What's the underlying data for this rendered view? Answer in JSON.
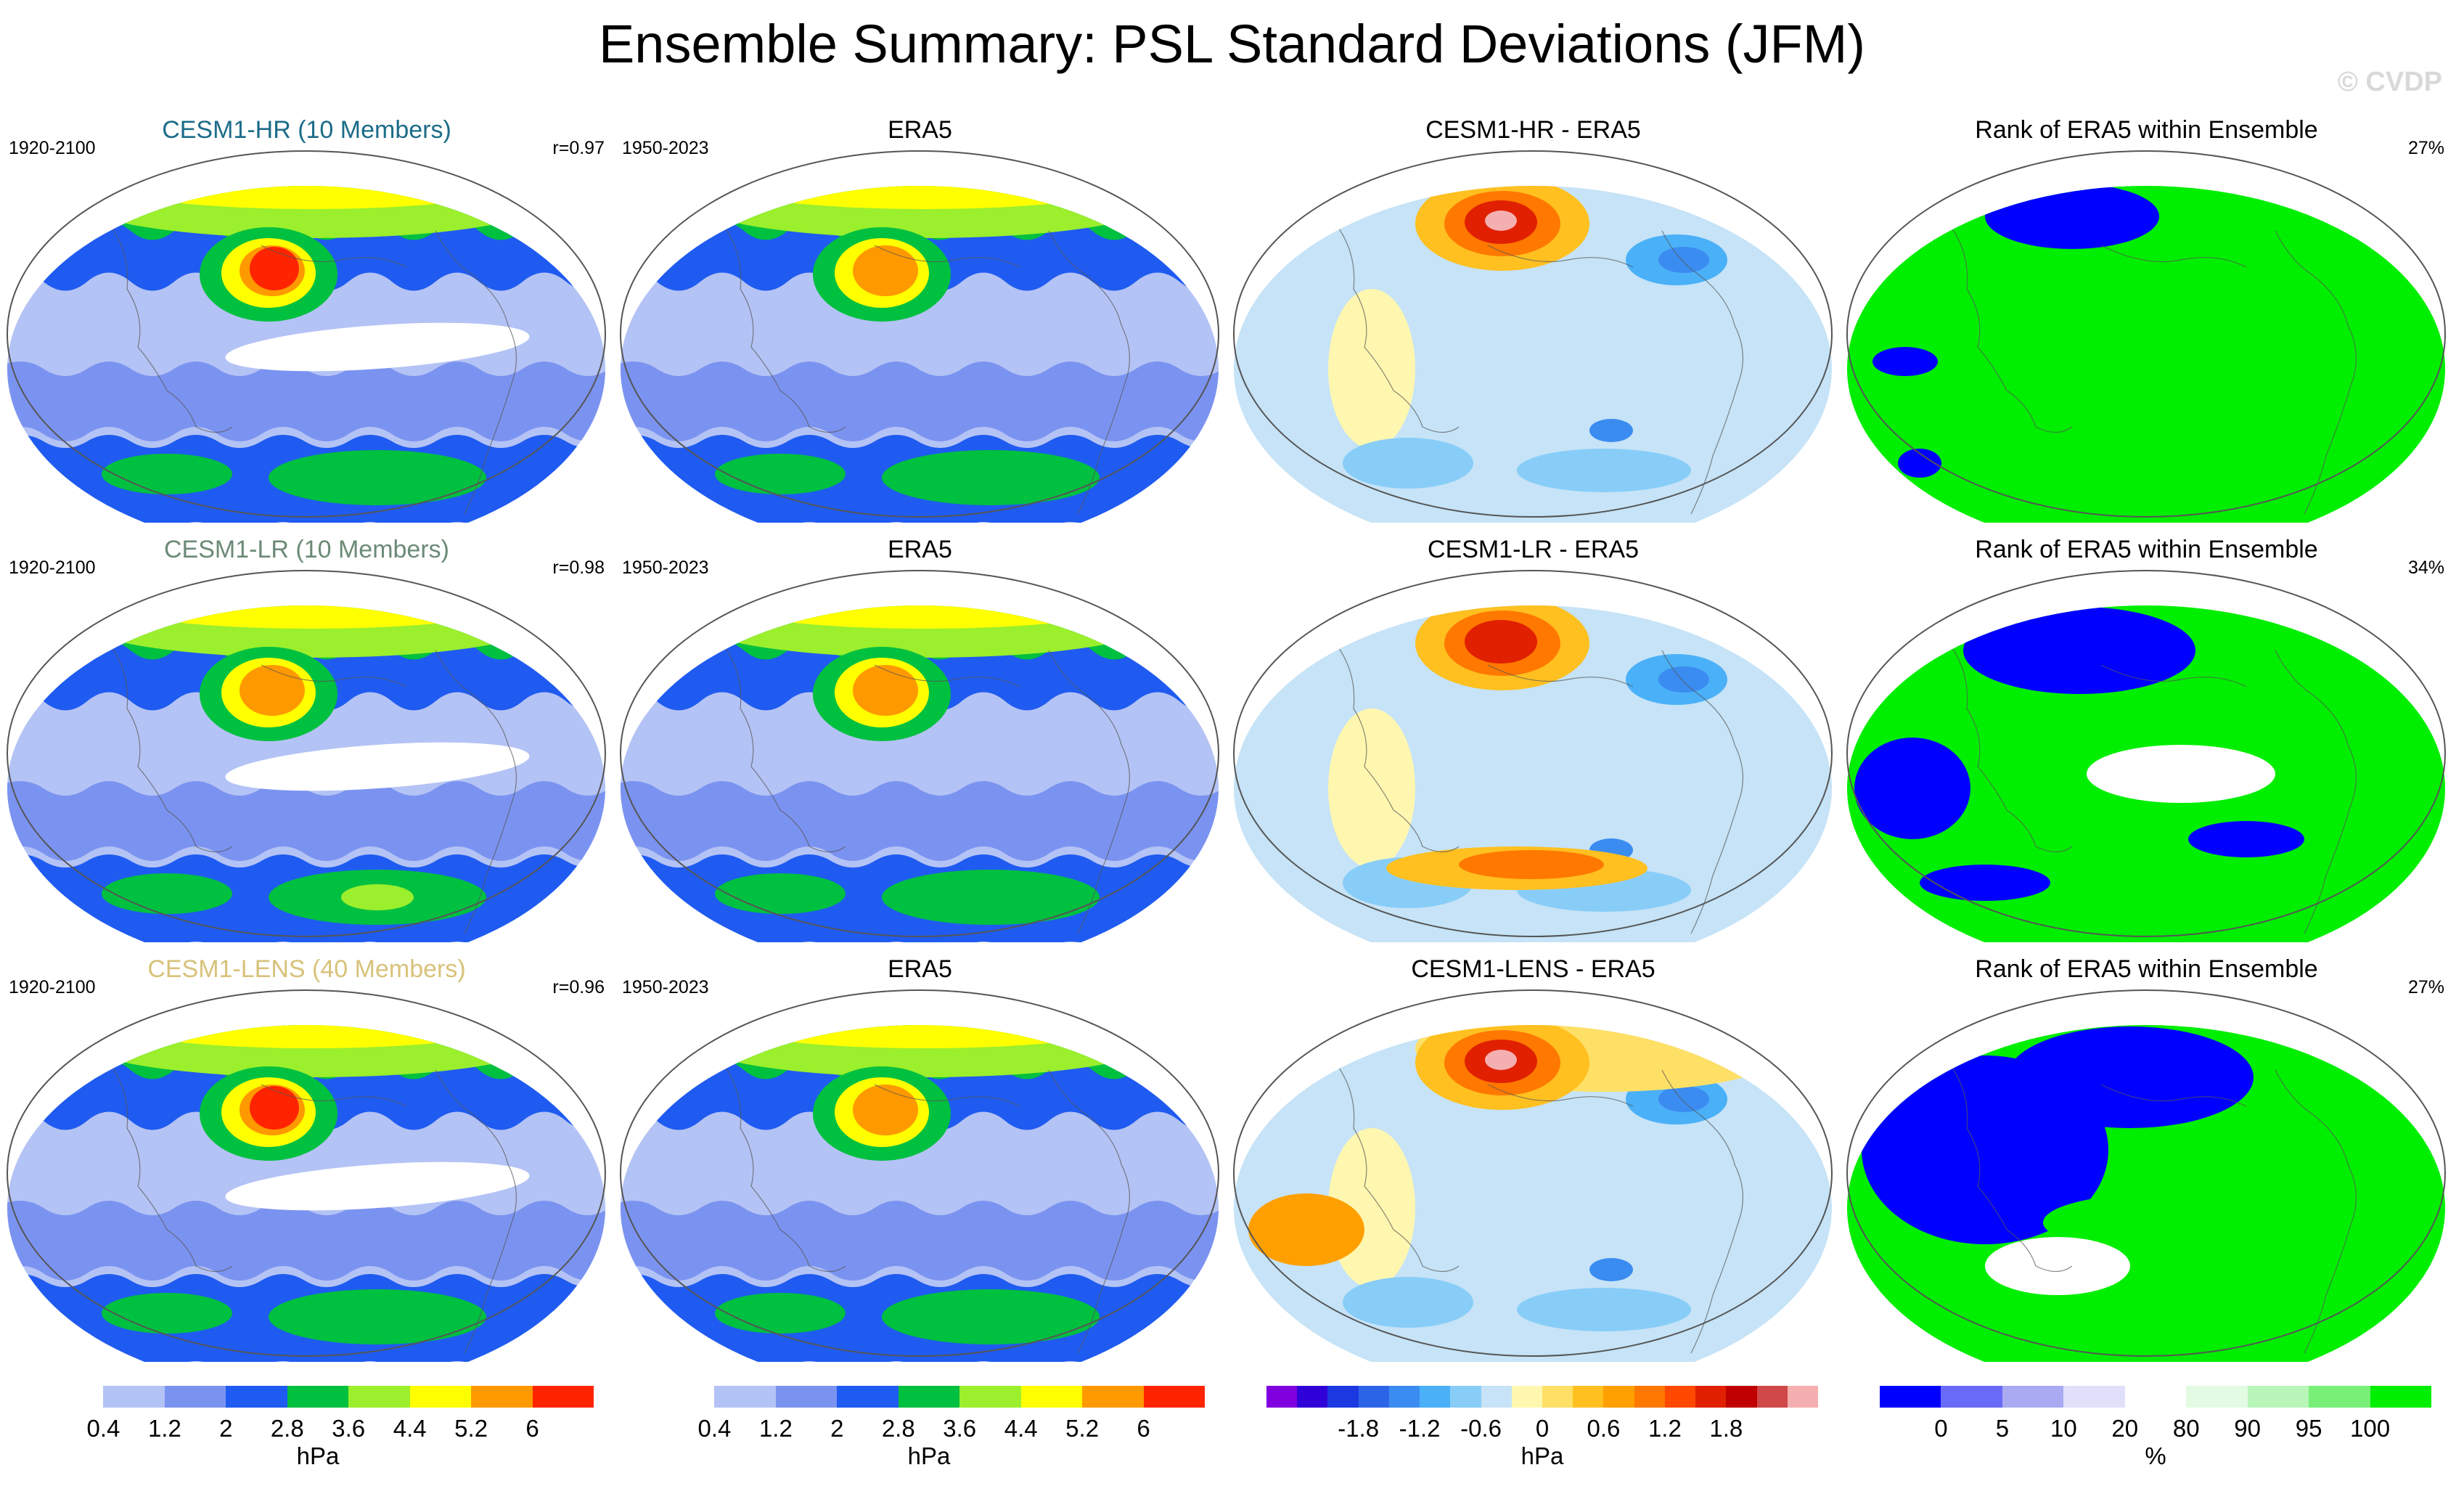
{
  "title": "Ensemble Summary: PSL Standard Deviations (JFM)",
  "watermark": "© CVDP",
  "rows": [
    {
      "model": {
        "title": "CESM1-HR (10 Members)",
        "title_color": "#1c6c89",
        "period": "1920-2100",
        "stat": "r=0.97"
      },
      "obs": {
        "title": "ERA5",
        "period": "1950-2023"
      },
      "diff": {
        "title": "CESM1-HR - ERA5"
      },
      "rank": {
        "title": "Rank of ERA5 within Ensemble",
        "stat": "27%"
      }
    },
    {
      "model": {
        "title": "CESM1-LR (10 Members)",
        "title_color": "#6c8a76",
        "period": "1920-2100",
        "stat": "r=0.98"
      },
      "obs": {
        "title": "ERA5",
        "period": "1950-2023"
      },
      "diff": {
        "title": "CESM1-LR - ERA5"
      },
      "rank": {
        "title": "Rank of ERA5 within Ensemble",
        "stat": "34%"
      }
    },
    {
      "model": {
        "title": "CESM1-LENS (40 Members)",
        "title_color": "#d8c27a",
        "period": "1920-2100",
        "stat": "r=0.96"
      },
      "obs": {
        "title": "ERA5",
        "period": "1950-2023"
      },
      "diff": {
        "title": "CESM1-LENS - ERA5"
      },
      "rank": {
        "title": "Rank of ERA5 within Ensemble",
        "stat": "27%"
      }
    }
  ],
  "colorbars": {
    "stddev": {
      "colors": [
        "#ffffff",
        "#b4c3f5",
        "#7b93f0",
        "#1f5bf0",
        "#00c040",
        "#9bef2c",
        "#ffff00",
        "#ff9900",
        "#ff2400"
      ],
      "ticks": [
        "0.4",
        "1.2",
        "2",
        "2.8",
        "3.6",
        "4.4",
        "5.2",
        "6"
      ],
      "unit": "hPa"
    },
    "diff": {
      "colors": [
        "#8000e0",
        "#3000d8",
        "#1c38e0",
        "#2c64e8",
        "#3b8cf0",
        "#4ab0f8",
        "#88cdf8",
        "#c6e3f7",
        "#fff7b0",
        "#ffe066",
        "#ffc020",
        "#ffa000",
        "#ff7800",
        "#ff4800",
        "#e02000",
        "#c00000",
        "#d04848",
        "#f4b0b0"
      ],
      "ticks": [
        "-1.8",
        "-1.2",
        "-0.6",
        "0",
        "0.6",
        "1.2",
        "1.8"
      ],
      "unit": "hPa"
    },
    "rank": {
      "colors": [
        "#0000ff",
        "#6a6af8",
        "#aaaaf2",
        "#e0e0fa",
        "#ffffff",
        "#e2fbe2",
        "#b8f5b8",
        "#78f078",
        "#00ee00"
      ],
      "ticks": [
        "0",
        "5",
        "10",
        "20",
        "80",
        "90",
        "95",
        "100"
      ],
      "unit": "%"
    }
  },
  "chart_data": [
    {
      "type": "heatmap",
      "panel": "model_stddev",
      "rows": [
        "CESM1-HR (10 Members)",
        "CESM1-LR (10 Members)",
        "CESM1-LENS (40 Members)"
      ],
      "units": "hPa",
      "levels": [
        0.4,
        1.2,
        2,
        2.8,
        3.6,
        4.4,
        5.2,
        6
      ],
      "pattern_correlation_vs_ERA5": [
        0.97,
        0.98,
        0.96
      ]
    },
    {
      "type": "heatmap",
      "panel": "obs_stddev",
      "title": "ERA5",
      "period": "1950-2023",
      "units": "hPa",
      "levels": [
        0.4,
        1.2,
        2,
        2.8,
        3.6,
        4.4,
        5.2,
        6
      ]
    },
    {
      "type": "heatmap",
      "panel": "difference",
      "titles": [
        "CESM1-HR - ERA5",
        "CESM1-LR - ERA5",
        "CESM1-LENS - ERA5"
      ],
      "units": "hPa",
      "levels": [
        -1.8,
        -1.2,
        -0.6,
        0,
        0.6,
        1.2,
        1.8
      ]
    },
    {
      "type": "heatmap",
      "panel": "rank",
      "title": "Rank of ERA5 within Ensemble",
      "units": "%",
      "levels": [
        0,
        5,
        10,
        20,
        80,
        90,
        95,
        100
      ],
      "summary_percent": [
        27,
        34,
        27
      ]
    }
  ]
}
